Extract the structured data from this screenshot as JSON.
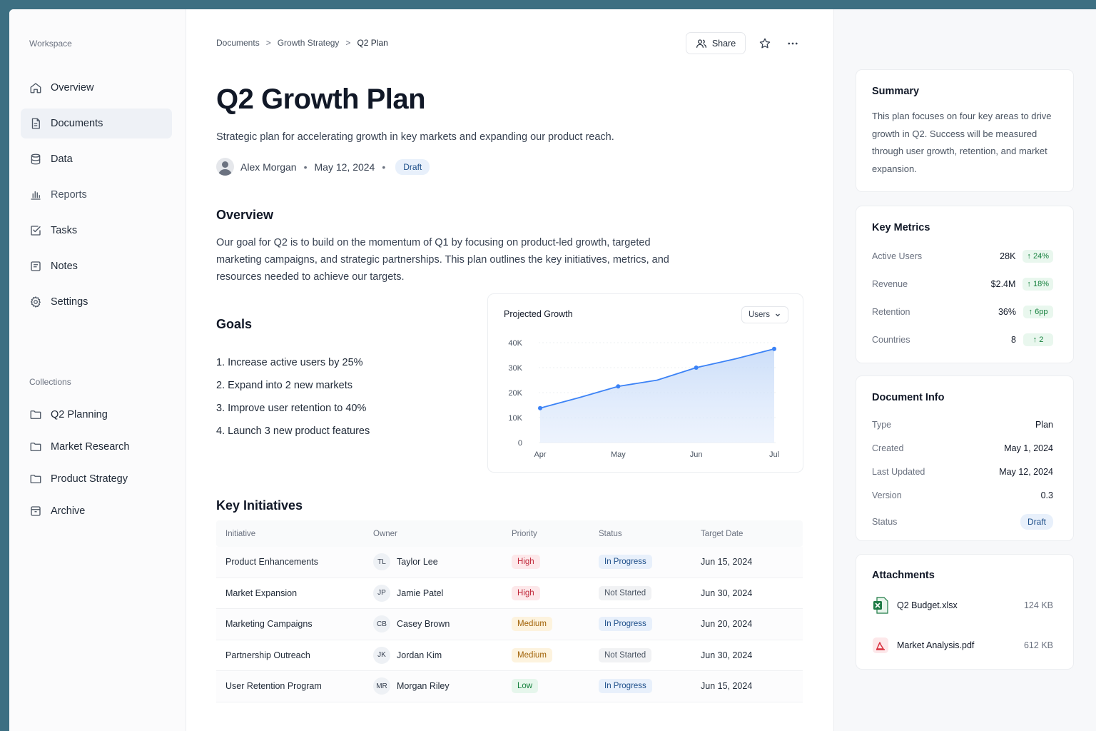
{
  "colors": {
    "accent": "#3b82f6",
    "high": "#fde8ea",
    "medium": "#fdf3de",
    "low": "#e6f6ec",
    "in_progress": "#e8f0fb",
    "not_started": "#f1f2f4"
  },
  "sidebar": {
    "workspace_heading": "Workspace",
    "items": [
      {
        "label": "Overview",
        "icon": "home-icon"
      },
      {
        "label": "Documents",
        "icon": "document-icon"
      },
      {
        "label": "Data",
        "icon": "database-icon"
      },
      {
        "label": "Reports",
        "icon": "bar-chart-icon"
      },
      {
        "label": "Tasks",
        "icon": "checkbox-icon"
      },
      {
        "label": "Notes",
        "icon": "note-icon"
      },
      {
        "label": "Settings",
        "icon": "gear-icon"
      }
    ],
    "collections_heading": "Collections",
    "collections": [
      {
        "label": "Q2 Planning",
        "icon": "folder-icon"
      },
      {
        "label": "Market Research",
        "icon": "folder-icon"
      },
      {
        "label": "Product Strategy",
        "icon": "folder-icon"
      },
      {
        "label": "Archive",
        "icon": "archive-icon"
      }
    ]
  },
  "header": {
    "breadcrumb": [
      "Documents",
      "Growth Strategy",
      "Q2 Plan"
    ],
    "share_label": "Share"
  },
  "doc": {
    "title": "Q2 Growth Plan",
    "subtitle": "Strategic plan for accelerating growth in key markets and expanding our product reach.",
    "author": "Alex Morgan",
    "date": "May 12, 2024",
    "status": "Draft",
    "overview_heading": "Overview",
    "overview_text": "Our goal for Q2 is to build on the momentum of Q1 by focusing on product-led growth, targeted marketing campaigns, and strategic partnerships. This plan outlines the key initiatives, metrics, and resources needed to achieve our targets.",
    "goals_heading": "Goals",
    "goals": [
      "1.  Increase active users by 25%",
      "2.  Expand into 2 new markets",
      "3.  Improve user retention to 40%",
      "4.  Launch 3 new product features"
    ],
    "initiatives_heading": "Key Initiatives"
  },
  "chart_data": {
    "type": "area",
    "title": "Projected Growth",
    "selector": "Users",
    "x": [
      "Apr",
      "",
      "May",
      "",
      "Jun",
      "",
      "Jul"
    ],
    "tick_labels_x": [
      "Apr",
      "May",
      "Jun",
      "Jul"
    ],
    "values": [
      13800,
      18000,
      22500,
      25000,
      30000,
      33500,
      37500
    ],
    "y_ticks": [
      "0",
      "10K",
      "20K",
      "30K",
      "40K"
    ],
    "ylim": [
      0,
      40000
    ],
    "grid": true,
    "legend": "none"
  },
  "table": {
    "headers": [
      "Initiative",
      "Owner",
      "Priority",
      "Status",
      "Target Date"
    ],
    "rows": [
      {
        "initiative": "Product Enhancements",
        "initials": "TL",
        "owner": "Taylor Lee",
        "priority": "High",
        "status": "In Progress",
        "date": "Jun 15, 2024"
      },
      {
        "initiative": "Market Expansion",
        "initials": "JP",
        "owner": "Jamie Patel",
        "priority": "High",
        "status": "Not Started",
        "date": "Jun 30, 2024"
      },
      {
        "initiative": "Marketing Campaigns",
        "initials": "CB",
        "owner": "Casey Brown",
        "priority": "Medium",
        "status": "In Progress",
        "date": "Jun 20, 2024"
      },
      {
        "initiative": "Partnership Outreach",
        "initials": "JK",
        "owner": "Jordan Kim",
        "priority": "Medium",
        "status": "Not Started",
        "date": "Jun 30, 2024"
      },
      {
        "initiative": "User Retention Program",
        "initials": "MR",
        "owner": "Morgan Riley",
        "priority": "Low",
        "status": "In Progress",
        "date": "Jun 15, 2024"
      }
    ]
  },
  "summary": {
    "title": "Summary",
    "text": "This plan focuses on four key areas to drive growth in Q2. Success will be measured through user growth, retention, and market expansion."
  },
  "metrics": {
    "title": "Key Metrics",
    "items": [
      {
        "label": "Active Users",
        "value": "28K",
        "delta": "↑ 24%"
      },
      {
        "label": "Revenue",
        "value": "$2.4M",
        "delta": "↑ 18%"
      },
      {
        "label": "Retention",
        "value": "36%",
        "delta": "↑ 6pp"
      },
      {
        "label": "Countries",
        "value": "8",
        "delta": "↑ 2"
      }
    ]
  },
  "doc_info": {
    "title": "Document Info",
    "items": [
      {
        "label": "Type",
        "value": "Plan"
      },
      {
        "label": "Created",
        "value": "May 1, 2024"
      },
      {
        "label": "Last Updated",
        "value": "May 12, 2024"
      },
      {
        "label": "Version",
        "value": "0.3"
      },
      {
        "label": "Status",
        "value": "Draft"
      }
    ]
  },
  "attachments": {
    "title": "Attachments",
    "items": [
      {
        "name": "Q2 Budget.xlsx",
        "size": "124 KB",
        "icon": "excel-file-icon"
      },
      {
        "name": "Market Analysis.pdf",
        "size": "612 KB",
        "icon": "pdf-file-icon"
      }
    ]
  }
}
